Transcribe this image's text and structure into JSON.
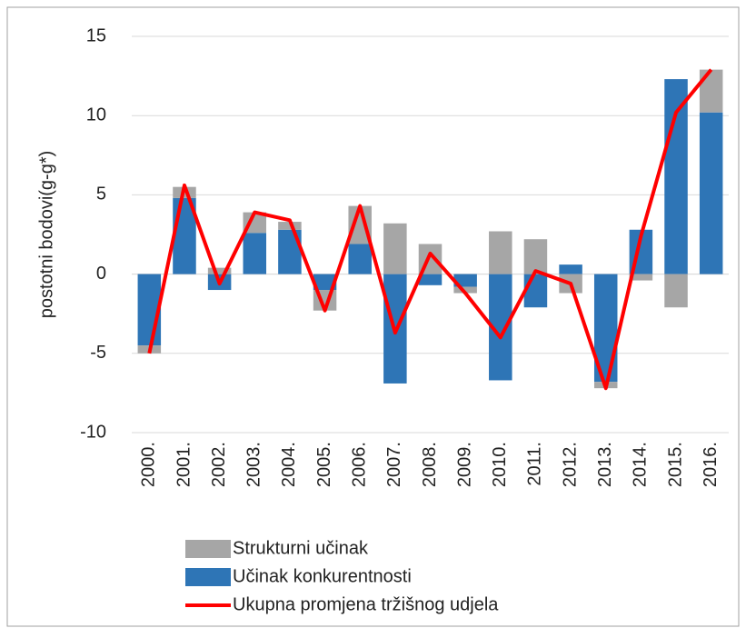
{
  "chart_data": {
    "type": "bar",
    "stacked": true,
    "y_label": "postotni bodovi(g-g*)",
    "categories": [
      "2000.",
      "2001.",
      "2002.",
      "2003.",
      "2004.",
      "2005.",
      "2006.",
      "2007.",
      "2008.",
      "2009.",
      "2010.",
      "2011.",
      "2012.",
      "2013.",
      "2014.",
      "2015.",
      "2016."
    ],
    "series": [
      {
        "name": "Strukturni učinak",
        "color": "#a6a6a6",
        "values": [
          -0.5,
          0.7,
          0.4,
          1.3,
          0.5,
          -1.3,
          2.4,
          3.2,
          1.9,
          -0.4,
          2.7,
          2.2,
          -1.2,
          -0.4,
          -0.4,
          -2.1,
          2.7
        ]
      },
      {
        "name": "Učinak konkurentnosti",
        "color": "#2e75b6",
        "values": [
          -4.5,
          4.8,
          -1.0,
          2.6,
          2.8,
          -1.0,
          1.9,
          -6.9,
          -0.7,
          -0.8,
          -6.7,
          -2.1,
          0.6,
          -6.8,
          2.8,
          12.3,
          10.2
        ]
      },
      {
        "name": "Ukupna promjena tržišnog udjela",
        "type": "line",
        "color": "#ff0000",
        "values": [
          -5.0,
          5.6,
          -0.6,
          3.9,
          3.4,
          -2.3,
          4.3,
          -3.7,
          1.3,
          -1.2,
          -4.0,
          0.2,
          -0.6,
          -7.2,
          2.4,
          10.2,
          12.9
        ]
      }
    ],
    "ylim": [
      -10,
      15
    ],
    "yticks": [
      -10,
      -5,
      0,
      5,
      10,
      15
    ],
    "grid": true
  }
}
